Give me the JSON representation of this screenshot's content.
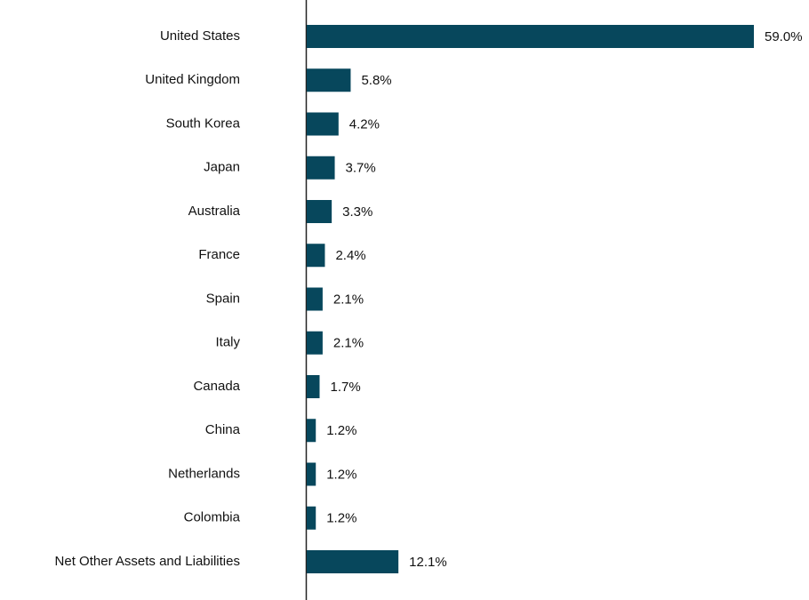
{
  "chart_data": {
    "type": "barh",
    "categories": [
      "United States",
      "United Kingdom",
      "South Korea",
      "Japan",
      "Australia",
      "France",
      "Spain",
      "Italy",
      "Canada",
      "China",
      "Netherlands",
      "Colombia",
      "Net Other Assets and Liabilities"
    ],
    "values": [
      59.0,
      5.8,
      4.2,
      3.7,
      3.3,
      2.4,
      2.1,
      2.1,
      1.7,
      1.2,
      1.2,
      1.2,
      12.1
    ],
    "value_labels": [
      "59.0%",
      "5.8%",
      "4.2%",
      "3.7%",
      "3.3%",
      "2.4%",
      "2.1%",
      "2.1%",
      "1.7%",
      "1.2%",
      "1.2%",
      "1.2%",
      "12.1%"
    ],
    "color": "#07475c"
  }
}
